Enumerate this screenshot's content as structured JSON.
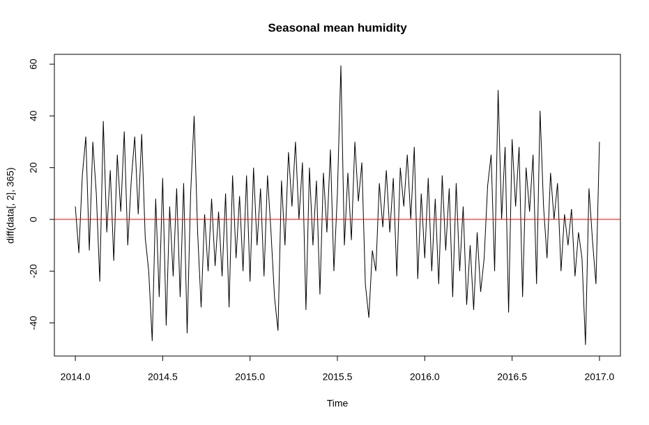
{
  "chart_data": {
    "type": "line",
    "title": "Seasonal mean humidity",
    "x_label": "Time",
    "y_label": "diff(data[, 2], 365)",
    "x": [
      2014.0,
      2014.02,
      2014.04,
      2014.06,
      2014.08,
      2014.1,
      2014.12,
      2014.14,
      2014.16,
      2014.18,
      2014.2,
      2014.22,
      2014.24,
      2014.26,
      2014.28,
      2014.3,
      2014.32,
      2014.34,
      2014.36,
      2014.38,
      2014.4,
      2014.42,
      2014.44,
      2014.46,
      2014.48,
      2014.5,
      2014.52,
      2014.54,
      2014.56,
      2014.58,
      2014.6,
      2014.62,
      2014.64,
      2014.66,
      2014.68,
      2014.7,
      2014.72,
      2014.74,
      2014.76,
      2014.78,
      2014.8,
      2014.82,
      2014.84,
      2014.86,
      2014.88,
      2014.9,
      2014.92,
      2014.94,
      2014.96,
      2014.98,
      2015.0,
      2015.02,
      2015.04,
      2015.06,
      2015.08,
      2015.1,
      2015.12,
      2015.14,
      2015.16,
      2015.18,
      2015.2,
      2015.22,
      2015.24,
      2015.26,
      2015.28,
      2015.3,
      2015.32,
      2015.34,
      2015.36,
      2015.38,
      2015.4,
      2015.42,
      2015.44,
      2015.46,
      2015.48,
      2015.5,
      2015.52,
      2015.54,
      2015.56,
      2015.58,
      2015.6,
      2015.62,
      2015.64,
      2015.66,
      2015.68,
      2015.7,
      2015.72,
      2015.74,
      2015.76,
      2015.78,
      2015.8,
      2015.82,
      2015.84,
      2015.86,
      2015.88,
      2015.9,
      2015.92,
      2015.94,
      2015.96,
      2015.98,
      2016.0,
      2016.02,
      2016.04,
      2016.06,
      2016.08,
      2016.1,
      2016.12,
      2016.14,
      2016.16,
      2016.18,
      2016.2,
      2016.22,
      2016.24,
      2016.26,
      2016.28,
      2016.3,
      2016.32,
      2016.34,
      2016.36,
      2016.38,
      2016.4,
      2016.42,
      2016.44,
      2016.46,
      2016.48,
      2016.5,
      2016.52,
      2016.54,
      2016.56,
      2016.58,
      2016.6,
      2016.62,
      2016.64,
      2016.66,
      2016.68,
      2016.7,
      2016.72,
      2016.74,
      2016.76,
      2016.78,
      2016.8,
      2016.82,
      2016.84,
      2016.86,
      2016.88,
      2016.9,
      2016.92,
      2016.94,
      2016.96,
      2016.98,
      2017.0
    ],
    "values": [
      5,
      -13,
      17,
      32,
      -12,
      30,
      10,
      -24,
      38,
      -5,
      19,
      -16,
      25,
      3,
      34,
      -10,
      15,
      32,
      2,
      33,
      -7,
      -20,
      -47,
      8,
      -30,
      16,
      -41,
      5,
      -22,
      12,
      -30,
      14,
      -44,
      10,
      40,
      -5,
      -34,
      2,
      -20,
      8,
      -18,
      3,
      -22,
      10,
      -34,
      17,
      -15,
      9,
      -20,
      17,
      -24,
      20,
      -10,
      12,
      -22,
      17,
      -5,
      -30,
      -43,
      15,
      -10,
      26,
      5,
      30,
      0,
      22,
      -35,
      20,
      -10,
      15,
      -29,
      18,
      -5,
      27,
      -20,
      10,
      59.5,
      -10,
      18,
      -8,
      30,
      7,
      22,
      -25,
      -38,
      -12,
      -20,
      14,
      -3,
      19,
      -5,
      16,
      -22,
      20,
      5,
      25,
      0,
      28,
      -23,
      10,
      -15,
      16,
      -20,
      8,
      -25,
      17,
      -12,
      12,
      -30,
      14,
      -20,
      5,
      -33,
      -10,
      -35,
      -5,
      -28,
      -15,
      13,
      25,
      -20,
      50,
      0,
      28,
      -36,
      31,
      5,
      28,
      -30,
      20,
      3,
      25,
      -25,
      42,
      5,
      -15,
      18,
      0,
      14,
      -20,
      2,
      -10,
      4,
      -22,
      -5,
      -15,
      -48.5,
      12,
      -8,
      -25,
      30
    ],
    "color": "#000000",
    "reference_line": {
      "value": 0,
      "color": "#ff0000"
    },
    "xlim": [
      2013.88,
      2017.12
    ],
    "xticks": [
      {
        "value": 2014,
        "label": "2014.0"
      },
      {
        "value": 2014.5,
        "label": "2014.5"
      },
      {
        "value": 2015,
        "label": "2015.0"
      },
      {
        "value": 2015.5,
        "label": "2015.5"
      },
      {
        "value": 2016,
        "label": "2016.0"
      },
      {
        "value": 2016.5,
        "label": "2016.5"
      },
      {
        "value": 2017,
        "label": "2017.0"
      }
    ],
    "ylim": [
      -52.8,
      63.8
    ],
    "yticks": [
      -40,
      -20,
      0,
      20,
      40,
      60
    ],
    "grid": false
  }
}
